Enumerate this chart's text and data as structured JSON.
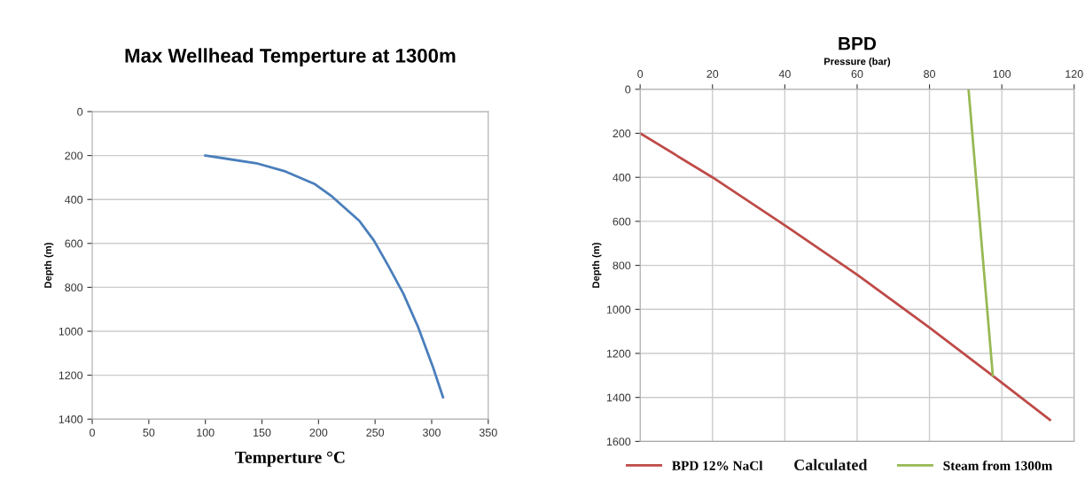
{
  "chart_data": [
    {
      "type": "line",
      "title": "Max Wellhead Temperture at 1300m",
      "xlabel": "Temperture °C",
      "ylabel": "Depth (m)",
      "xlim": [
        0,
        350
      ],
      "xticks": [
        0,
        50,
        100,
        150,
        200,
        250,
        300,
        350
      ],
      "ylim": [
        1400,
        0
      ],
      "yticks": [
        0,
        200,
        400,
        600,
        800,
        1000,
        1200,
        1400
      ],
      "grid": "y",
      "legend": false,
      "marker": "none",
      "line_style": "solid",
      "series": [
        {
          "color": "#4a7ebb",
          "x": [
            100,
            145,
            171,
            197,
            212,
            236,
            249,
            262,
            275,
            288,
            301,
            310
          ],
          "values": [
            200,
            235,
            273,
            331,
            387,
            497,
            587,
            705,
            829,
            981,
            1161,
            1300
          ]
        }
      ]
    },
    {
      "type": "line",
      "title": "BPD",
      "xlabel": "Pressure (bar)",
      "ylabel": "Depth (m)",
      "xlim": [
        0,
        120
      ],
      "xticks": [
        0,
        20,
        40,
        60,
        80,
        100,
        120
      ],
      "ylim": [
        1600,
        0
      ],
      "yticks": [
        0,
        200,
        400,
        600,
        800,
        1000,
        1200,
        1400,
        1600
      ],
      "grid": true,
      "legend": "bottom",
      "marker": "none",
      "line_style": "solid",
      "annotations": [
        "Calculated"
      ],
      "series": [
        {
          "name": "BPD 12% NaCl",
          "color": "#be4b48",
          "x": [
            0,
            20,
            40,
            60,
            80,
            97.7,
            113.3
          ],
          "values": [
            200,
            400,
            618,
            842,
            1083,
            1304,
            1502
          ]
        },
        {
          "name": "Steam from 1300m",
          "color": "#98b954",
          "x": [
            90.8,
            97.5
          ],
          "values": [
            0,
            1300
          ]
        }
      ]
    }
  ]
}
